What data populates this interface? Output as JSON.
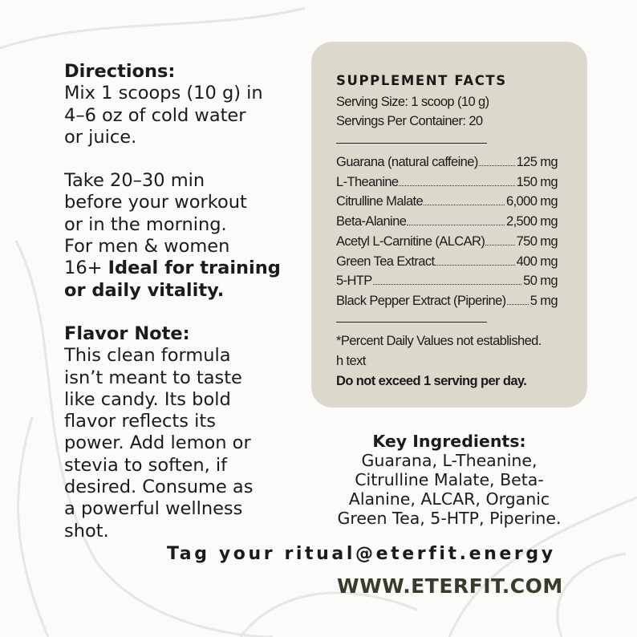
{
  "directions": {
    "heading": "Directions:",
    "lines": [
      "Mix 1 scoops (10 g) in",
      "4–6 oz of cold water",
      "or juice."
    ],
    "timing": [
      "Take 20–30 min",
      "before your workout",
      "or in the morning.",
      "For men & women"
    ],
    "audience_prefix": "16+ ",
    "audience_bold": [
      "Ideal for training",
      "or daily vitality."
    ]
  },
  "flavor": {
    "heading": "Flavor Note:",
    "lines": [
      "This clean formula",
      "isn’t meant to taste",
      "like candy.  Its bold",
      "flavor reflects its",
      "power.  Add lemon or",
      "stevia to soften, if",
      "desired.  Consume as",
      "a powerful wellness",
      "shot."
    ]
  },
  "facts": {
    "title": "SUPPLEMENT FACTS",
    "serving_size": "Serving Size: 1 scoop (10 g)",
    "servings_per_container": "Servings Per Container: 20",
    "ingredients": [
      {
        "name": "Guarana (natural caffeine)",
        "amount": "125 mg"
      },
      {
        "name": "L-Theanine",
        "amount": "150 mg"
      },
      {
        "name": "Citrulline Malate",
        "amount": "6,000 mg"
      },
      {
        "name": "Beta-Alanine",
        "amount": "2,500 mg"
      },
      {
        "name": "Acetyl L-Carnitine (ALCAR)",
        "amount": "750 mg"
      },
      {
        "name": "Green Tea Extract",
        "amount": "400 mg"
      },
      {
        "name": "5-HTP",
        "amount": "50 mg"
      },
      {
        "name": "Black Pepper Extract (Piperine)",
        "amount": "5 mg"
      }
    ],
    "footnote": "*Percent Daily Values not established.",
    "extra": "h text",
    "warning": "Do not exceed 1 serving per day.",
    "panel_color": "#dcd9cc"
  },
  "key_ingredients": {
    "heading": "Key Ingredients:",
    "lines": [
      "Guarana, L-Theanine,",
      "Citrulline Malate, Beta-",
      "Alanine, ALCAR, Organic",
      "Green Tea, 5-HTP, Piperine."
    ]
  },
  "tag": "Tag your ritual@eterfit.energy",
  "website": "WWW.ETERFIT.COM",
  "website_color": "#3b3b2c"
}
